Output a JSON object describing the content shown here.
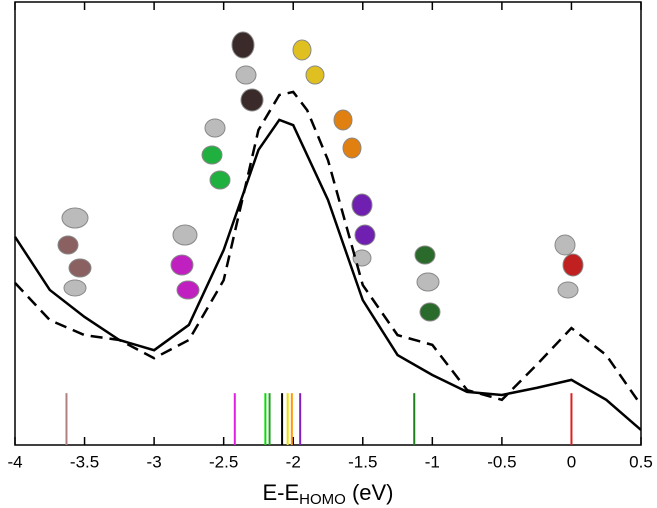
{
  "chart_data": {
    "type": "line",
    "xlabel": "E-E",
    "xlabel_sub": "HOMO",
    "xlabel_unit": " (eV)",
    "xlim": [
      -4,
      0.5
    ],
    "xticks": [
      -4,
      -3.5,
      -3,
      -2.5,
      -2,
      -1.5,
      -1,
      -0.5,
      0,
      0.5
    ],
    "ylim": [
      0,
      100
    ],
    "series": [
      {
        "style": "solid",
        "color": "#000000",
        "x": [
          -4,
          -3.75,
          -3.5,
          -3.25,
          -3,
          -2.75,
          -2.5,
          -2.25,
          -2.1,
          -2,
          -1.75,
          -1.5,
          -1.25,
          -1,
          -0.75,
          -0.5,
          -0.25,
          0,
          0.25,
          0.5
        ],
        "values": [
          47,
          35,
          28.9,
          23.7,
          21.4,
          27.1,
          44,
          66.6,
          73.4,
          72.2,
          55.3,
          32.7,
          20.3,
          15.8,
          12,
          11.3,
          12.9,
          14.7,
          10.2,
          3.4
        ]
      },
      {
        "style": "dashed",
        "color": "#000000",
        "x": [
          -4,
          -3.75,
          -3.5,
          -3.25,
          -3,
          -2.75,
          -2.5,
          -2.25,
          -2.1,
          -2,
          -1.9,
          -1.75,
          -1.5,
          -1.25,
          -1,
          -0.75,
          -0.5,
          -0.25,
          0,
          0.25,
          0.5
        ],
        "values": [
          36.6,
          28.2,
          24.8,
          23.7,
          19.6,
          23.7,
          37.2,
          71.1,
          79,
          79.7,
          75.6,
          64.3,
          36.1,
          24.8,
          22.6,
          12.4,
          10.2,
          18.1,
          26.4,
          20.3,
          9
        ]
      }
    ],
    "levels": {
      "x": [
        -3.63,
        -2.42,
        -2.2,
        -2.17,
        -2.08,
        -2.04,
        -2.01,
        -1.95,
        -1.13,
        0
      ],
      "colors": [
        "#b08080",
        "#e020e0",
        "#00e000",
        "#20a020",
        "#000000",
        "#f0e000",
        "#ff9900",
        "#8020c0",
        "#208020",
        "#e02020"
      ],
      "height": 11.7
    }
  }
}
